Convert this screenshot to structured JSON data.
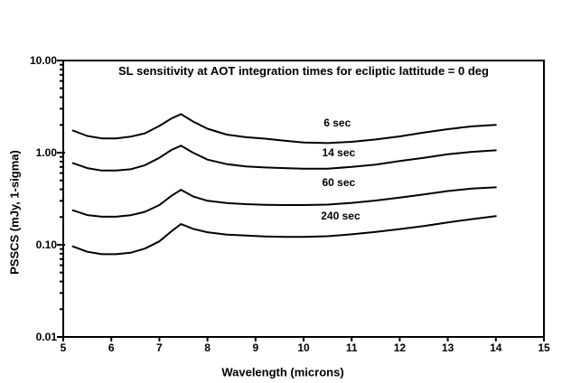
{
  "chart_data": {
    "type": "line",
    "title": "SL sensitivity at AOT integration times for ecliptic lattitude = 0 deg",
    "xlabel": "Wavelength (microns)",
    "ylabel": "PSSCS (mJy, 1-sigma)",
    "background_color": "#ffffff",
    "line_color": "#000000",
    "grid": false,
    "legend": "inline-curve-labels",
    "x_axis": {
      "scale": "linear",
      "min": 5,
      "max": 15,
      "tick_labels": [
        "5",
        "6",
        "7",
        "8",
        "9",
        "10",
        "11",
        "12",
        "13",
        "14",
        "15"
      ],
      "tick_values": [
        5,
        6,
        7,
        8,
        9,
        10,
        11,
        12,
        13,
        14,
        15
      ]
    },
    "y_axis": {
      "scale": "log",
      "min": 0.01,
      "max": 10,
      "tick_labels": [
        "10.00",
        "1.00",
        "0.10",
        "0.01"
      ],
      "tick_values": [
        10,
        1,
        0.1,
        0.01
      ],
      "minor_ticks_per_decade": [
        2,
        3,
        4,
        5,
        6,
        7,
        8,
        9
      ]
    },
    "x": [
      5.2,
      5.5,
      5.8,
      6.1,
      6.4,
      6.7,
      7.0,
      7.25,
      7.45,
      7.7,
      8.0,
      8.4,
      8.8,
      9.2,
      9.6,
      10.0,
      10.5,
      11.0,
      11.5,
      12.0,
      12.5,
      13.0,
      13.5,
      14.0
    ],
    "series": [
      {
        "name": "6 sec",
        "values": [
          1.74,
          1.52,
          1.43,
          1.43,
          1.49,
          1.62,
          1.95,
          2.35,
          2.62,
          2.18,
          1.82,
          1.57,
          1.47,
          1.42,
          1.35,
          1.29,
          1.27,
          1.31,
          1.39,
          1.5,
          1.65,
          1.8,
          1.93,
          2.0
        ],
        "label": {
          "text": "6 sec",
          "x": 10.7,
          "y": 2.1
        }
      },
      {
        "name": "14 sec",
        "values": [
          0.77,
          0.68,
          0.64,
          0.64,
          0.66,
          0.73,
          0.88,
          1.07,
          1.19,
          1.0,
          0.84,
          0.75,
          0.71,
          0.69,
          0.68,
          0.67,
          0.67,
          0.7,
          0.74,
          0.81,
          0.88,
          0.96,
          1.02,
          1.06
        ],
        "label": {
          "text": "14 sec",
          "x": 10.73,
          "y": 0.99
        }
      },
      {
        "name": "60 sec",
        "values": [
          0.237,
          0.21,
          0.202,
          0.202,
          0.209,
          0.228,
          0.27,
          0.34,
          0.395,
          0.335,
          0.3,
          0.284,
          0.276,
          0.272,
          0.27,
          0.27,
          0.273,
          0.285,
          0.302,
          0.325,
          0.352,
          0.383,
          0.408,
          0.42
        ],
        "label": {
          "text": "60 sec",
          "x": 10.73,
          "y": 0.48
        }
      },
      {
        "name": "240 sec",
        "values": [
          0.096,
          0.084,
          0.079,
          0.079,
          0.082,
          0.091,
          0.109,
          0.14,
          0.168,
          0.149,
          0.137,
          0.129,
          0.126,
          0.123,
          0.122,
          0.122,
          0.124,
          0.13,
          0.138,
          0.148,
          0.16,
          0.175,
          0.19,
          0.205
        ],
        "label": {
          "text": "240 sec",
          "x": 10.77,
          "y": 0.204
        }
      }
    ]
  }
}
